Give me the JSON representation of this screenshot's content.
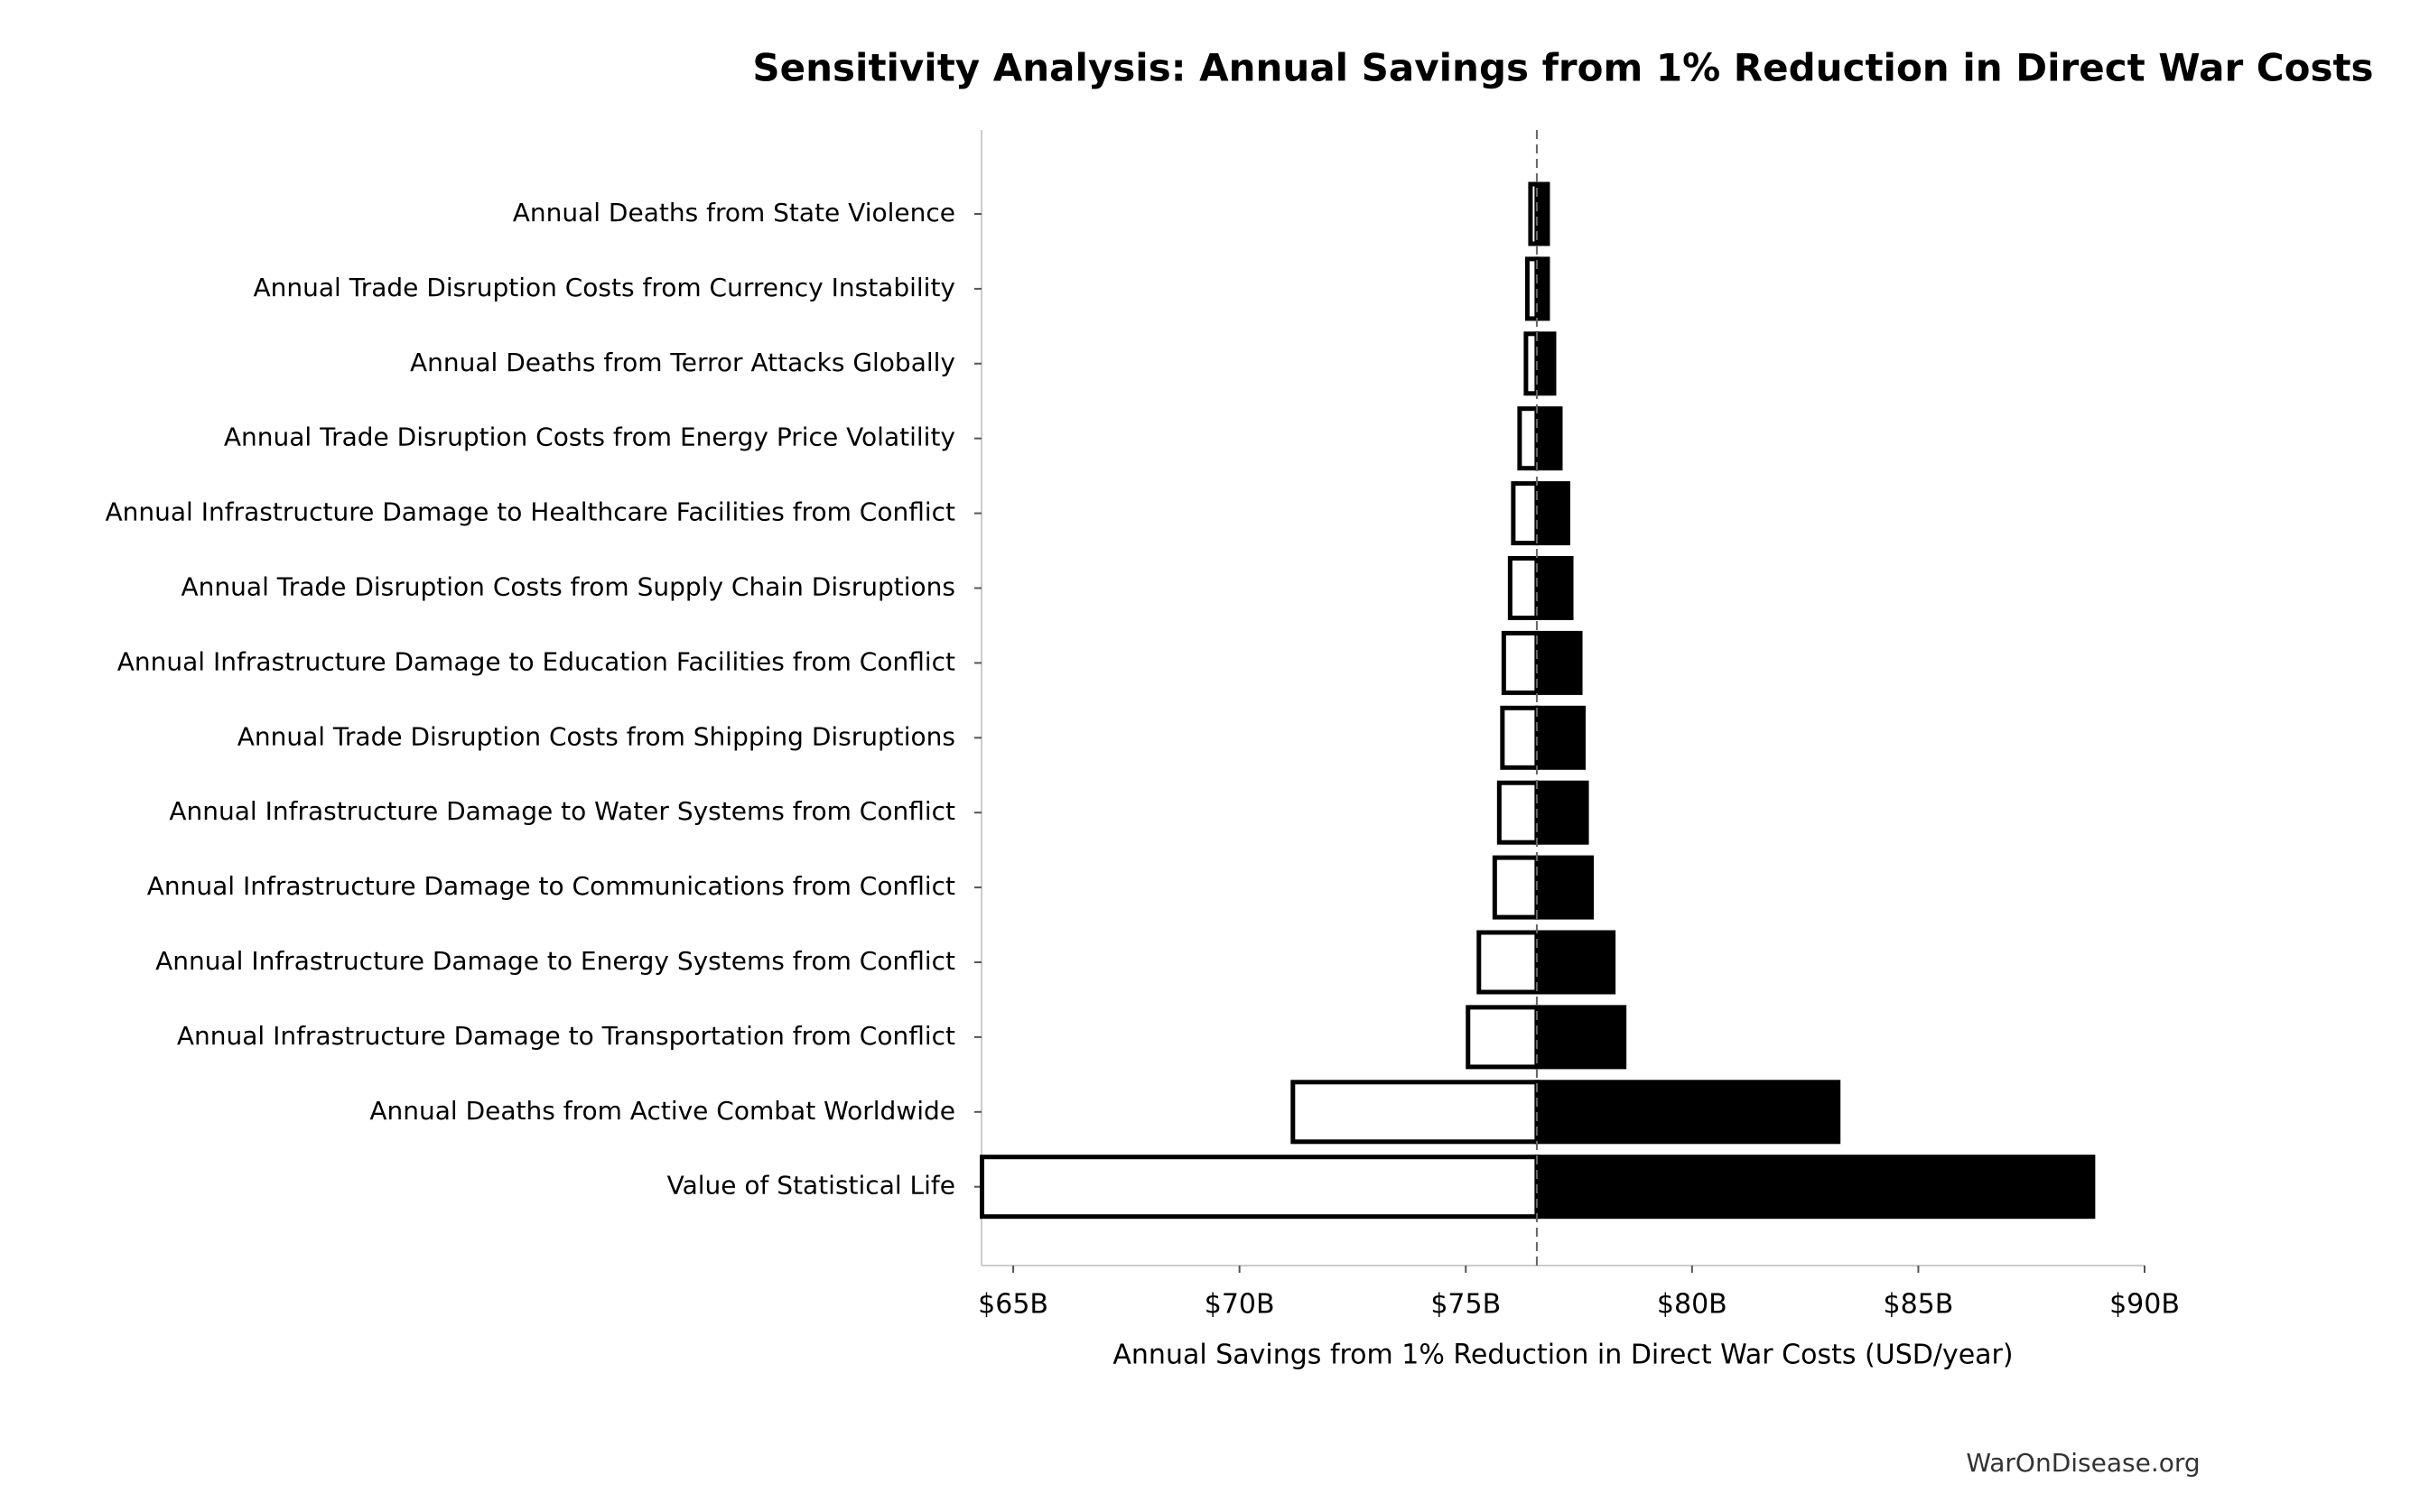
{
  "chart_data": {
    "type": "tornado",
    "title": "Sensitivity Analysis: Annual Savings from 1% Reduction in Direct War Costs",
    "x_label": "Annual Savings from 1% Reduction in Direct War Costs (USD/year)",
    "source": "WarOnDisease.org",
    "categories": [
      "Annual Deaths from State Violence",
      "Annual Trade Disruption Costs from Currency Instability",
      "Annual Deaths from Terror Attacks Globally",
      "Annual Trade Disruption Costs from Energy Price Volatility",
      "Annual Infrastructure Damage to Healthcare Facilities from Conflict",
      "Annual Trade Disruption Costs from Supply Chain Disruptions",
      "Annual Infrastructure Damage to Education Facilities from Conflict",
      "Annual Trade Disruption Costs from Shipping Disruptions",
      "Annual Infrastructure Damage to Water Systems from Conflict",
      "Annual Infrastructure Damage to Communications from Conflict",
      "Annual Infrastructure Damage to Energy Systems from Conflict",
      "Annual Infrastructure Damage to Transportation from Conflict",
      "Annual Deaths from Active Combat Worldwide",
      "Value of Statistical Life"
    ],
    "baseline": 76.57,
    "low_values": [
      76.43,
      76.36,
      76.33,
      76.19,
      76.05,
      75.98,
      75.84,
      75.81,
      75.74,
      75.64,
      75.29,
      75.05,
      71.18,
      64.31
    ],
    "high_values": [
      76.81,
      76.81,
      76.95,
      77.09,
      77.26,
      77.33,
      77.53,
      77.6,
      77.67,
      77.78,
      78.26,
      78.5,
      83.23,
      88.86
    ],
    "low_color": "#ffffff",
    "high_color": "#000000",
    "xlim": [
      64.3,
      90
    ],
    "xticks": [
      {
        "value": 65,
        "label": "$65B"
      },
      {
        "value": 70,
        "label": "$70B"
      },
      {
        "value": 75,
        "label": "$75B"
      },
      {
        "value": 80,
        "label": "$80B"
      },
      {
        "value": 85,
        "label": "$85B"
      },
      {
        "value": 90,
        "label": "$90B"
      }
    ]
  }
}
